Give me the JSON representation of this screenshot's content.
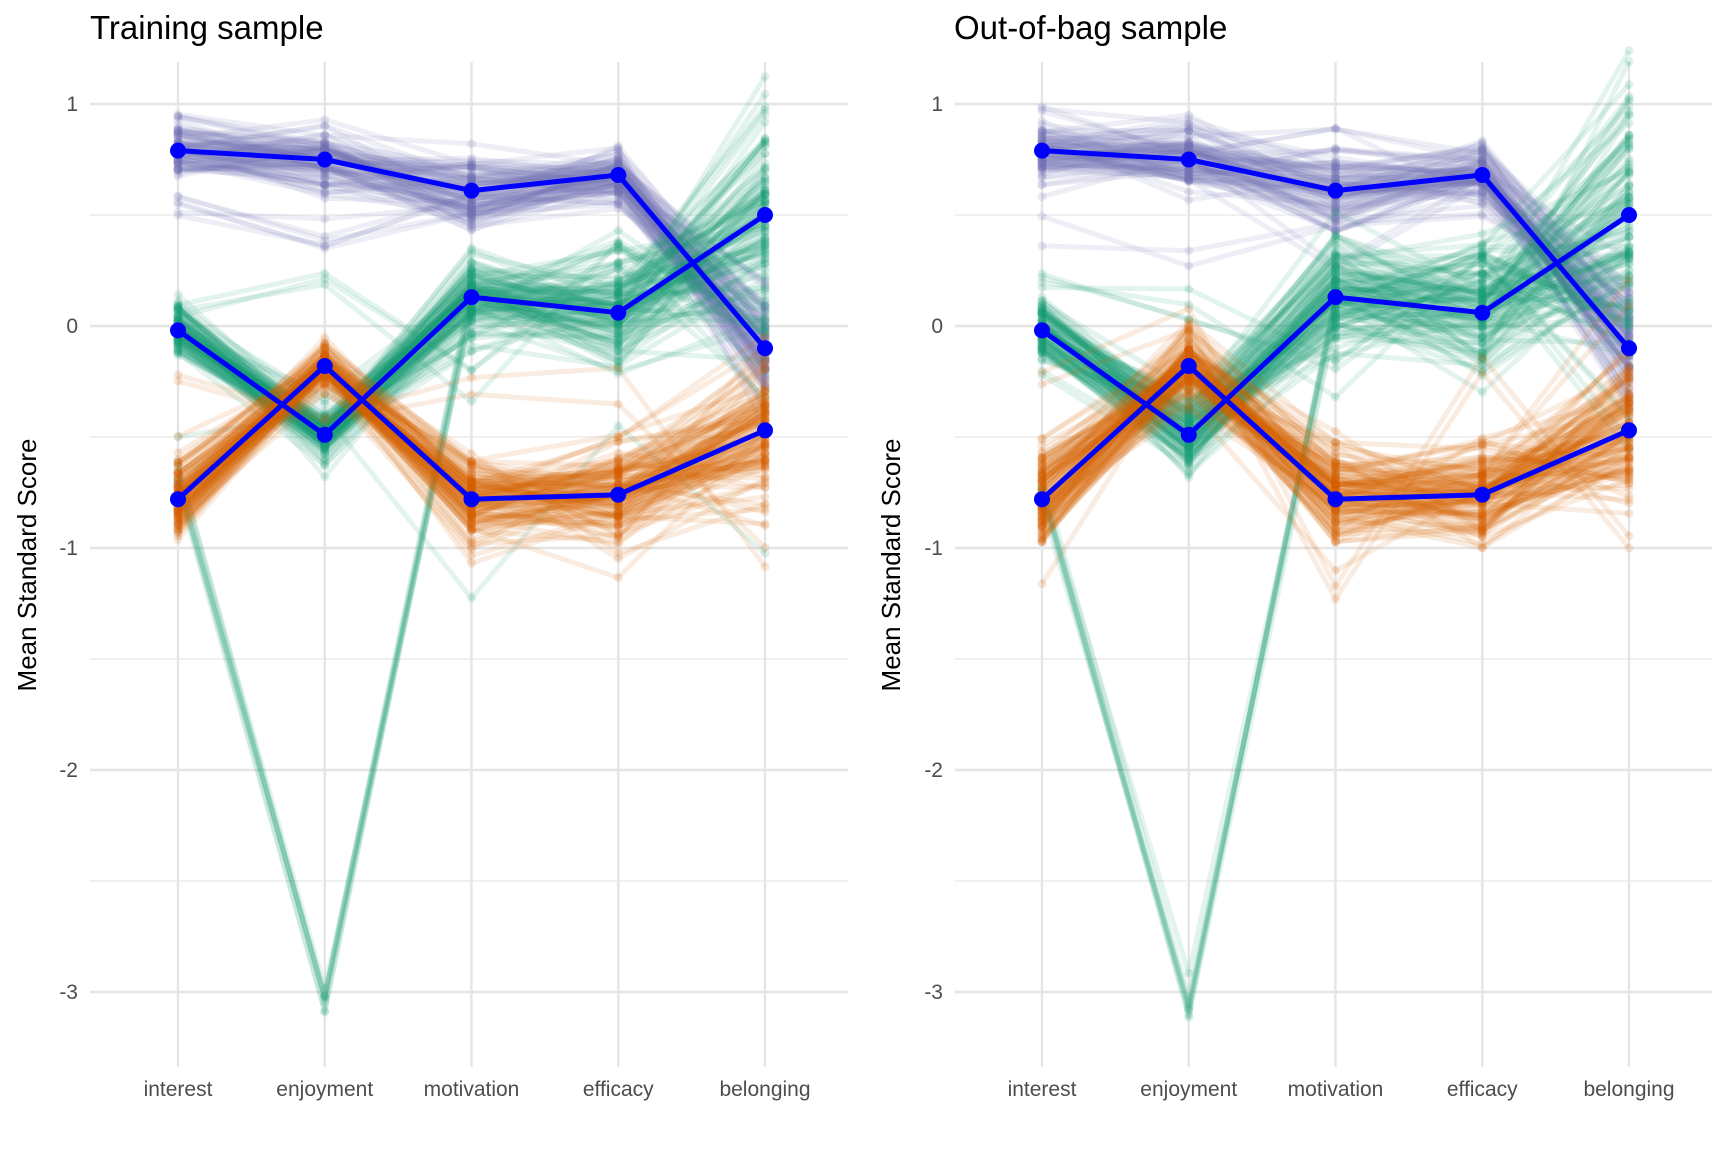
{
  "chart_data": [
    {
      "type": "line",
      "subtype": "parallel-coordinates",
      "title": "Training sample",
      "xlabel": "",
      "ylabel": "Mean Standard Score",
      "categories": [
        "interest",
        "enjoyment",
        "motivation",
        "efficacy",
        "belonging"
      ],
      "y_ticks": [
        1,
        0,
        -1,
        -2,
        -3
      ],
      "y_tick_labels": [
        "1",
        "0",
        "-1",
        "-2",
        "-3"
      ],
      "ylim": [
        -3.3,
        1.15
      ],
      "grid": true,
      "legend": "none",
      "mean_series": [
        {
          "name": "cluster-purple",
          "values": [
            0.79,
            0.75,
            0.61,
            0.68,
            -0.1
          ]
        },
        {
          "name": "cluster-green",
          "values": [
            -0.02,
            -0.49,
            0.13,
            0.06,
            0.5
          ]
        },
        {
          "name": "cluster-orange",
          "values": [
            -0.78,
            -0.18,
            -0.78,
            -0.76,
            -0.47
          ]
        }
      ],
      "replicate_series": [
        {
          "name": "cluster-purple",
          "count": 90,
          "spread": [
            0.07,
            0.09,
            0.1,
            0.06,
            0.14
          ],
          "outliers": [
            {
              "values": [
                0.58,
                0.4,
                0.55,
                0.6,
                -0.05
              ],
              "count": 6
            }
          ]
        },
        {
          "name": "cluster-green",
          "count": 110,
          "spread": [
            0.06,
            0.06,
            0.1,
            0.12,
            0.28
          ],
          "outliers": [
            {
              "values": [
                -0.7,
                -3.03,
                0.08,
                0.35,
                0.0
              ],
              "count": 8
            },
            {
              "values": [
                0.1,
                0.22,
                -0.25,
                0.3,
                -0.3
              ],
              "count": 3
            },
            {
              "values": [
                -0.5,
                -0.4,
                -1.3,
                -0.45,
                -1.05
              ],
              "count": 1
            }
          ]
        },
        {
          "name": "cluster-orange",
          "count": 120,
          "spread": [
            0.09,
            0.05,
            0.1,
            0.12,
            0.17
          ],
          "outliers": [
            {
              "values": [
                -0.25,
                -0.45,
                -0.3,
                -0.24,
                -1.08
              ],
              "count": 2
            }
          ]
        }
      ]
    },
    {
      "type": "line",
      "subtype": "parallel-coordinates",
      "title": "Out-of-bag sample",
      "xlabel": "",
      "ylabel": "Mean Standard Score",
      "categories": [
        "interest",
        "enjoyment",
        "motivation",
        "efficacy",
        "belonging"
      ],
      "y_ticks": [
        1,
        0,
        -1,
        -2,
        -3
      ],
      "y_tick_labels": [
        "1",
        "0",
        "-1",
        "-2",
        "-3"
      ],
      "ylim": [
        -3.3,
        1.15
      ],
      "grid": true,
      "legend": "none",
      "mean_series": [
        {
          "name": "cluster-purple",
          "values": [
            0.79,
            0.75,
            0.61,
            0.68,
            -0.1
          ]
        },
        {
          "name": "cluster-green",
          "values": [
            -0.02,
            -0.49,
            0.13,
            0.06,
            0.5
          ]
        },
        {
          "name": "cluster-orange",
          "values": [
            -0.78,
            -0.18,
            -0.78,
            -0.76,
            -0.47
          ]
        }
      ],
      "replicate_series": [
        {
          "name": "cluster-purple",
          "count": 90,
          "spread": [
            0.08,
            0.1,
            0.12,
            0.07,
            0.15
          ],
          "outliers": [
            {
              "values": [
                0.42,
                0.3,
                0.5,
                0.55,
                0.1
              ],
              "count": 2
            }
          ]
        },
        {
          "name": "cluster-green",
          "count": 110,
          "spread": [
            0.09,
            0.08,
            0.12,
            0.15,
            0.3
          ],
          "outliers": [
            {
              "values": [
                -0.75,
                -3.05,
                0.1,
                0.3,
                0.0
              ],
              "count": 8
            },
            {
              "values": [
                0.2,
                0.05,
                -0.2,
                0.3,
                -0.5
              ],
              "count": 4
            }
          ]
        },
        {
          "name": "cluster-orange",
          "count": 120,
          "spread": [
            0.12,
            0.08,
            0.13,
            0.14,
            0.18
          ],
          "outliers": [
            {
              "values": [
                -0.3,
                0.05,
                -1.2,
                -0.2,
                -0.98
              ],
              "count": 2
            }
          ]
        }
      ]
    }
  ],
  "colors": {
    "cluster-purple": "#7570B3",
    "cluster-green": "#1B9E77",
    "cluster-orange": "#D95F02",
    "mean-line": "#0000FF",
    "grid": "#E5E5E5",
    "tick-text": "#4D4D4D",
    "title-text": "#000000"
  }
}
